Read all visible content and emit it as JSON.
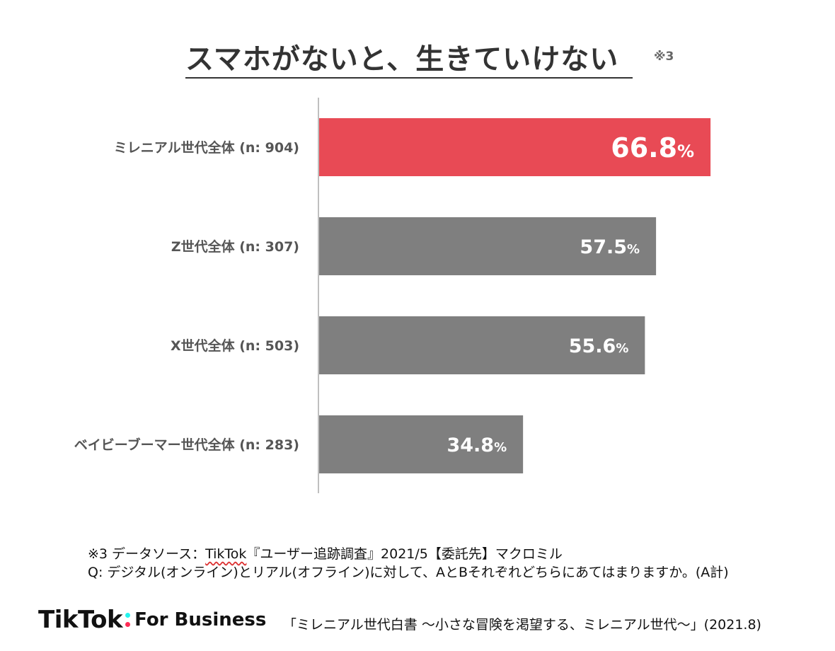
{
  "title": "スマホがないと、生きていけない",
  "title_note": "※3",
  "colors": {
    "highlight": "#e84a55",
    "bar": "#7f7f7f",
    "axis": "#bfbfbf"
  },
  "chart_data": {
    "type": "bar",
    "orientation": "horizontal",
    "categories": [
      "ミレニアル世代全体 (n: 904)",
      "Z世代全体 (n: 307)",
      "X世代全体 (n: 503)",
      "ベイビーブーマー世代全体 (n: 283)"
    ],
    "values": [
      66.8,
      57.5,
      55.6,
      34.8
    ],
    "value_labels": [
      "66.8",
      "57.5",
      "55.6",
      "34.8"
    ],
    "unit": "%",
    "highlight_index": 0,
    "xlim": [
      0,
      100
    ],
    "grid": false,
    "legend": "none"
  },
  "footnote": {
    "prefix": "※3 データソース：",
    "brand": "TikTok",
    "rest": "『ユーザー追跡調査』2021/5【委託先】マクロミル"
  },
  "question": "Q: デジタル(オンライン)とリアル(オフライン)に対して、AとBそれぞれどちらにあてはまりますか。(A計)",
  "logo": {
    "main": "TikTok",
    "sub": "For Business",
    "icon": "tiktok-logo-colon"
  },
  "source": "「ミレニアル世代白書 〜小さな冒険を渇望する、ミレニアル世代〜」(2021.8)"
}
